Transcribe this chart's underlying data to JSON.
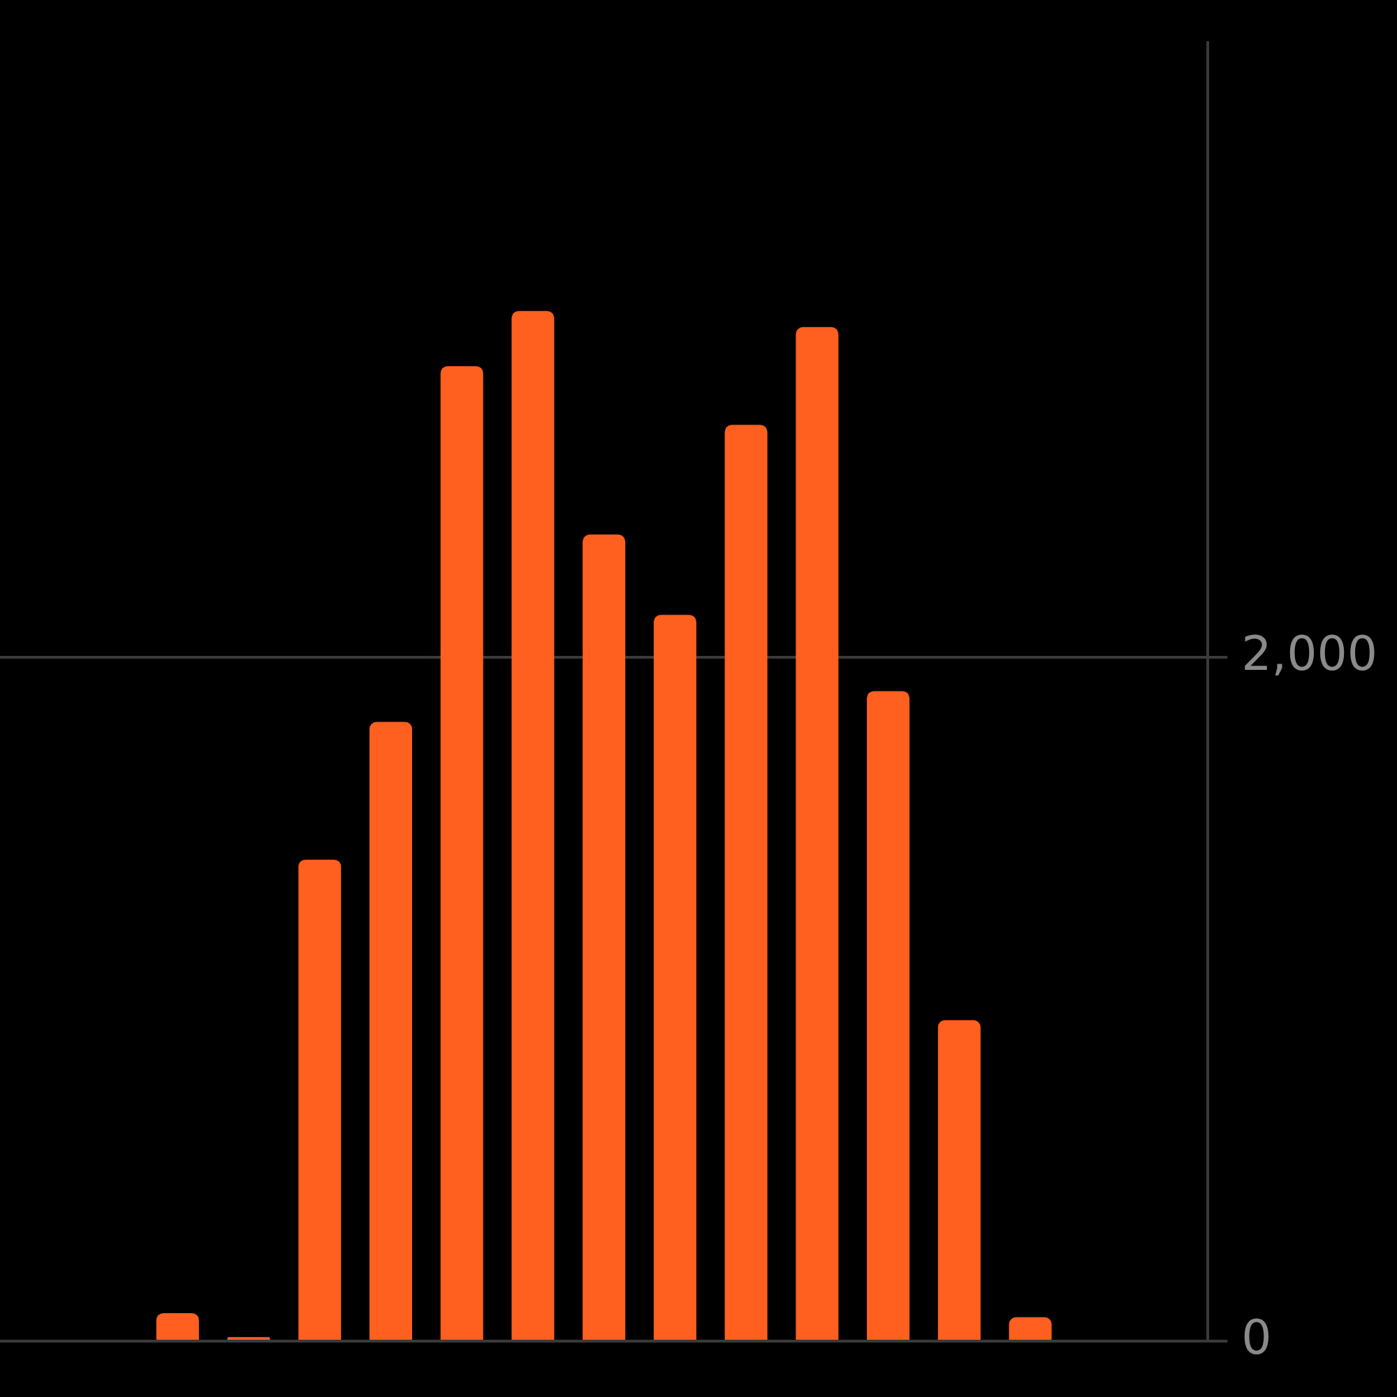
{
  "chart_data": {
    "type": "bar",
    "categories": [
      null,
      null,
      null,
      null,
      null,
      null,
      null,
      null,
      null,
      null,
      null,
      null,
      null,
      null,
      null,
      null,
      null
    ],
    "values": [
      0,
      0,
      82,
      12,
      1409,
      1812,
      2853,
      3014,
      2360,
      2125,
      2681,
      2967,
      1902,
      939,
      70,
      0,
      0
    ],
    "color": "#ff5f1f",
    "ylim": [
      0,
      3800
    ],
    "yticks": [
      0,
      {
        "value": 2000,
        "label": "2,000"
      }
    ],
    "grid": "y",
    "tick_labels": "y"
  }
}
